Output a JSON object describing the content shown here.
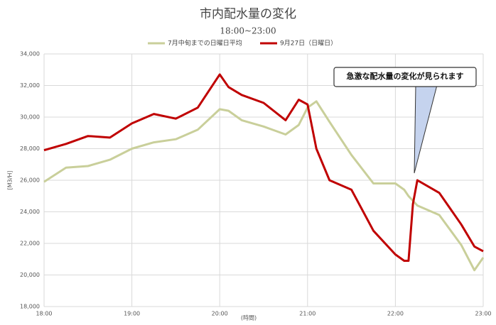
{
  "chart_data": {
    "type": "line",
    "title": "市内配水量の変化",
    "subtitle": "18:00~23:00",
    "y_label": "[M3/H]",
    "x_label": "(時間)",
    "annotation": "急激な配水量の変化が見られます",
    "x": [
      18,
      18.25,
      18.5,
      18.75,
      19,
      19.25,
      19.5,
      19.75,
      20,
      20.1,
      20.25,
      20.5,
      20.75,
      20.9,
      21,
      21.1,
      21.25,
      21.5,
      21.75,
      22,
      22.1,
      22.15,
      22.2,
      22.25,
      22.5,
      22.75,
      22.9,
      23
    ],
    "series": [
      {
        "name": "7月中旬までの日曜日平均",
        "color": "#c9cf9a",
        "values": [
          25900,
          26800,
          26900,
          27300,
          28000,
          28400,
          28600,
          29200,
          30500,
          30400,
          29800,
          29400,
          28900,
          29500,
          30600,
          31000,
          29700,
          27600,
          25800,
          25800,
          25400,
          25000,
          24700,
          24400,
          23800,
          21900,
          20300,
          21100
        ]
      },
      {
        "name": "9月27日（日曜日）",
        "color": "#c00000",
        "values": [
          27900,
          28300,
          28800,
          28700,
          29600,
          30200,
          29900,
          30600,
          32700,
          31900,
          31400,
          30900,
          29800,
          31100,
          30800,
          28000,
          26000,
          25400,
          22800,
          21300,
          20900,
          20900,
          24500,
          26000,
          25200,
          23200,
          21800,
          21500
        ]
      }
    ],
    "xlim": [
      18,
      23
    ],
    "xticks": [
      {
        "value": 18,
        "label": "18:00"
      },
      {
        "value": 19,
        "label": "19:00"
      },
      {
        "value": 20,
        "label": "20:00"
      },
      {
        "value": 21,
        "label": "21:00"
      },
      {
        "value": 22,
        "label": "22:00"
      },
      {
        "value": 23,
        "label": "23:00"
      }
    ],
    "ylim": [
      18000,
      34000
    ],
    "yticks": [
      {
        "value": 18000,
        "label": "18,000"
      },
      {
        "value": 20000,
        "label": "20,000"
      },
      {
        "value": 22000,
        "label": "22,000"
      },
      {
        "value": 24000,
        "label": "24,000"
      },
      {
        "value": 26000,
        "label": "26,000"
      },
      {
        "value": 28000,
        "label": "28,000"
      },
      {
        "value": 30000,
        "label": "30,000"
      },
      {
        "value": 32000,
        "label": "32,000"
      },
      {
        "value": 34000,
        "label": "34,000"
      }
    ],
    "grid": true
  }
}
